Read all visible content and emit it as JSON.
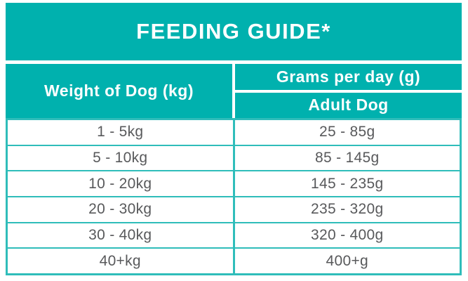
{
  "title": "FEEDING GUIDE*",
  "colors": {
    "teal_header": "#00b1ae",
    "grid_border_teal": "#2fbdba",
    "data_text_gray": "#58595b",
    "header_text": "#ffffff",
    "background": "#ffffff"
  },
  "header": {
    "weight_col": "Weight of Dog (kg)",
    "grams_col": "Grams per day (g)",
    "grams_subcol": "Adult Dog"
  },
  "table": {
    "rows": [
      {
        "weight": "1 - 5kg",
        "grams": "25 - 85g"
      },
      {
        "weight": "5 - 10kg",
        "grams": "85 - 145g"
      },
      {
        "weight": "10 - 20kg",
        "grams": "145 - 235g"
      },
      {
        "weight": "20 - 30kg",
        "grams": "235 - 320g"
      },
      {
        "weight": "30 - 40kg",
        "grams": "320 - 400g"
      },
      {
        "weight": "40+kg",
        "grams": "400+g"
      }
    ]
  },
  "chart_data": {
    "type": "table",
    "title": "FEEDING GUIDE*",
    "columns": [
      "Weight of Dog (kg)",
      "Grams per day (g) - Adult Dog"
    ],
    "rows": [
      [
        "1 - 5kg",
        "25 - 85g"
      ],
      [
        "5 - 10kg",
        "85 - 145g"
      ],
      [
        "10 - 20kg",
        "145 - 235g"
      ],
      [
        "20 - 30kg",
        "235 - 320g"
      ],
      [
        "30 - 40kg",
        "320 - 400g"
      ],
      [
        "40+kg",
        "400+g"
      ]
    ]
  }
}
